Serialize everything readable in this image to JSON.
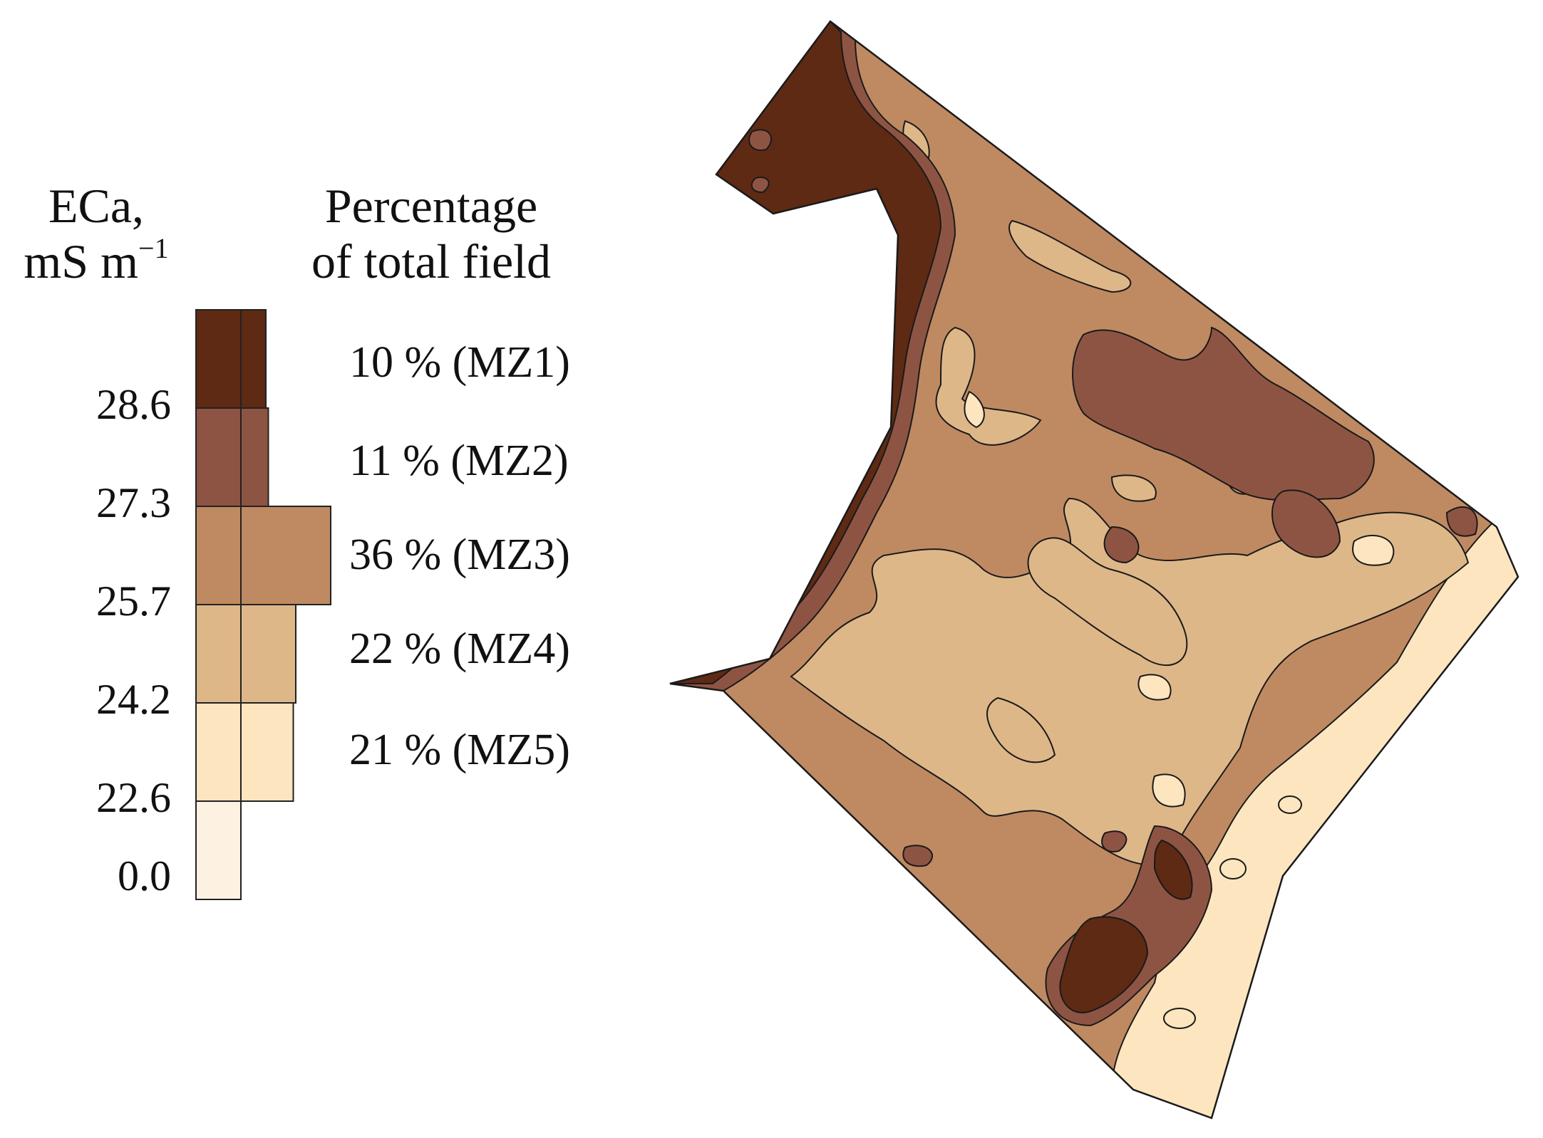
{
  "legend": {
    "eca_title_line1": "ECa,",
    "eca_title_line2": "mS m",
    "eca_title_sup": "−1",
    "pct_title_line1": "Percentage",
    "pct_title_line2": "of total field",
    "ticks": [
      "28.6",
      "27.3",
      "25.7",
      "24.2",
      "22.6",
      "0.0"
    ],
    "zones": [
      {
        "label": "10 % (MZ1)",
        "percent": 10,
        "color": "#5e2a14"
      },
      {
        "label": "11 % (MZ2)",
        "percent": 11,
        "color": "#8e5443"
      },
      {
        "label": "36 % (MZ3)",
        "percent": 36,
        "color": "#bf8a62"
      },
      {
        "label": "22 % (MZ4)",
        "percent": 22,
        "color": "#deb789"
      },
      {
        "label": "21 % (MZ5)",
        "percent": 21,
        "color": "#fde6bf"
      }
    ],
    "below_color": "#fdf1e2"
  }
}
